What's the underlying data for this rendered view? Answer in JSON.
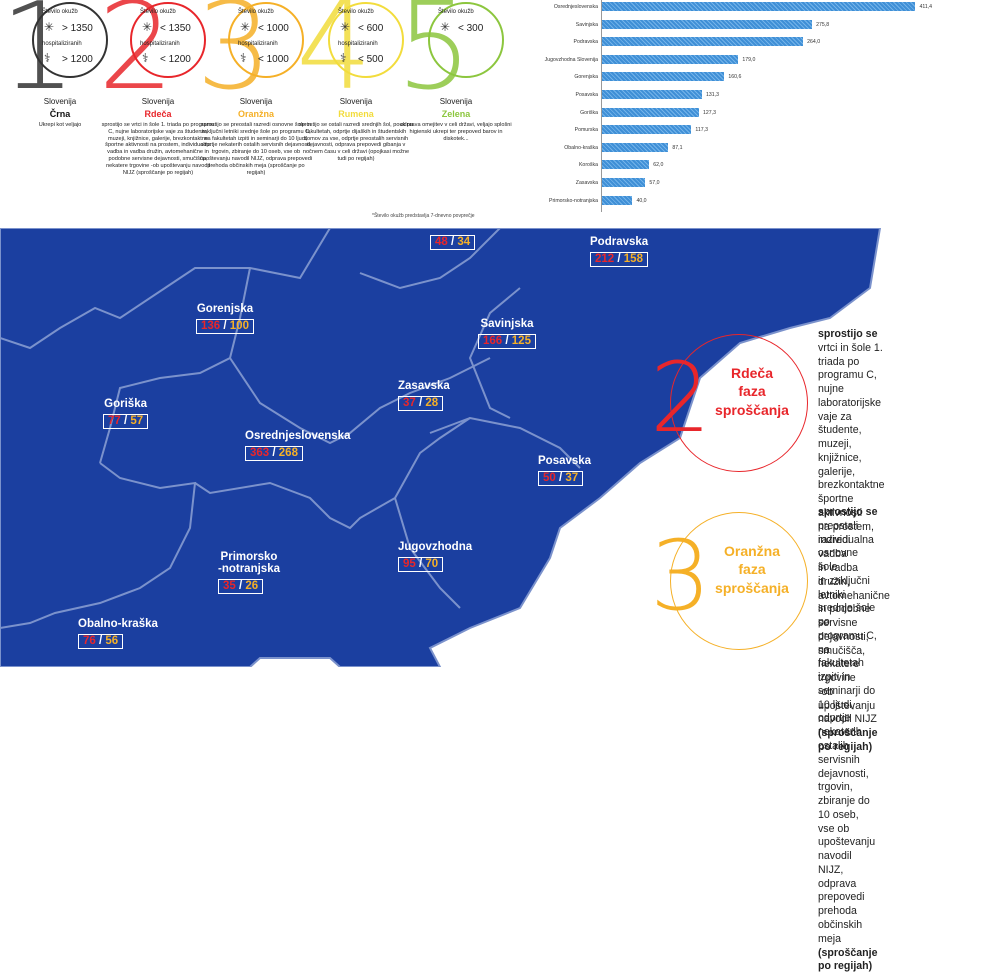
{
  "phases": [
    {
      "num": "1",
      "color": "#333333",
      "stat_top": "Število okužb",
      "val_top": "> 1350",
      "stat_mid": "hospitaliziranih",
      "val_mid": "> 1200",
      "region": "Slovenija",
      "name": "Črna",
      "desc": "Ukrepi kot veljajo"
    },
    {
      "num": "2",
      "color": "#e8262b",
      "stat_top": "Število okužb",
      "val_top": "< 1350",
      "stat_mid": "hospitaliziranih",
      "val_mid": "< 1200",
      "region": "Slovenija",
      "name": "Rdeča",
      "desc": "sprostijo se vrtci in šole 1. triada po programu C, nujne laboratorijske vaje za študente, muzeji, knjižnice, galerije, brezkontaktne športne aktivnosti na prostem, individualna vadba in vadba družin, avtomehanične in podobne servisne dejavnosti, smučišča, nekatere trgovine -ob upoštevanju navodil NIJZ (sproščanje po regijah)"
    },
    {
      "num": "3",
      "color": "#f5b027",
      "stat_top": "Število okužb",
      "val_top": "< 1000",
      "stat_mid": "hospitaliziranih",
      "val_mid": "< 1000",
      "region": "Slovenija",
      "name": "Oranžna",
      "desc": "sprostijo se preostali razredi osnovne šole in zaključni letniki srednje šole po programu C, na fakultetah izpiti in seminarji do 10 ljudi, odprtje nekaterih ostalih servisnih dejavnosti, trgovin, zbiranje do 10 oseb, vse ob upoštevanju navodil NIJZ, odprava prepovedi prehoda občinskih meja (sproščanje po regijah)"
    },
    {
      "num": "4",
      "color": "#f2dc3c",
      "stat_top": "Število okužb",
      "val_top": "< 600",
      "stat_mid": "hospitaliziranih",
      "val_mid": "< 500",
      "region": "Slovenija",
      "name": "Rumena",
      "desc": "sprostijo se ostali razredi srednjih šol, pouk na fakultetah, odprtje dijaških in študentskih domov za vse, odprtje preostalih servisnih dejavnosti, odprava prepovedi gibanja v nočnem času v celi državi (opojkasi možne tudi po regijah)"
    },
    {
      "num": "5",
      "color": "#8cc63e",
      "stat_top": "Število okužb",
      "val_top": "< 300",
      "stat_mid": "",
      "val_mid": "",
      "region": "Slovenija",
      "name": "Zelena",
      "desc": "odprava omejitev v celi državi, veljajo splošni higienski ukrepi ter prepoved barov in diskotek..."
    }
  ],
  "footnote": "*Število okužb predstavlja 7-dnevno povprečje",
  "chart_data": {
    "type": "bar",
    "orientation": "horizontal",
    "categories": [
      "Osrednjeslovenska",
      "Savinjska",
      "Podravska",
      "Jugovzhodna Slovenija",
      "Gorenjska",
      "Posavska",
      "Goriška",
      "Pomurska",
      "Obalno-kraška",
      "Koroška",
      "Zasavska",
      "Primorsko-notranjska"
    ],
    "values": [
      411.4,
      275.8,
      264.0,
      179.0,
      160.6,
      131.3,
      127.3,
      117.3,
      87.1,
      62.0,
      57.0,
      40.0
    ],
    "value_labels": [
      "411,4",
      "275,8",
      "264,0",
      "179,0",
      "160,6",
      "131,3",
      "127,3",
      "117,3",
      "87,1",
      "62,0",
      "57,0",
      "40,0"
    ],
    "color": "#3f8fd6"
  },
  "map": {
    "fill": "#1b3fa0",
    "regions": [
      {
        "name": "Pomurska",
        "a": "48",
        "b": "34"
      },
      {
        "name": "Podravska",
        "a": "212",
        "b": "158"
      },
      {
        "name": "Gorenjska",
        "a": "136",
        "b": "100"
      },
      {
        "name": "Savinjska",
        "a": "166",
        "b": "125"
      },
      {
        "name": "Goriška",
        "a": "77",
        "b": "57"
      },
      {
        "name": "Zasavska",
        "a": "37",
        "b": "28"
      },
      {
        "name": "Osrednjeslovenska",
        "a": "363",
        "b": "268"
      },
      {
        "name": "Posavska",
        "a": "50",
        "b": "37"
      },
      {
        "name": "Primorsko",
        "name2": "-notranjska",
        "a": "35",
        "b": "26"
      },
      {
        "name": "Jugovzhodna",
        "a": "95",
        "b": "70"
      },
      {
        "name": "Obalno-kraška",
        "a": "76",
        "b": "56"
      }
    ],
    "sep": "/"
  },
  "callouts": [
    {
      "num": "2",
      "color": "#e8262b",
      "title": "Rdeča faza sproščanja",
      "t1": "Rdeča",
      "t2": "faza",
      "t3": "sproščanja",
      "head": "sprostijo se",
      "body": [
        "vrtci in šole 1. triada po programu C,",
        "nujne laboratorijske vaje za študente,",
        "muzeji, knjižnice, galerije,",
        "brezkontaktne športne aktivnosti",
        "na prostem, individualna vadba",
        "in vadba družin, avtomehanične",
        "in podobne servisne dejavnosti,",
        "smučišča, nekatere trgovine",
        "-ob upoštevanju navodil NIJZ"
      ],
      "tail": "(sproščanje po regijah)"
    },
    {
      "num": "3",
      "color": "#f5b027",
      "t1": "Oranžna",
      "t2": "faza",
      "t3": "sproščanja",
      "head": "sprostijo se",
      "body": [
        "preostali razredi osnovne šole",
        "in zaključni letniki srednje šole",
        "po programu C, na fakultetah",
        "izpiti in seminarji do 10 ljudi,",
        "odprtje nekaterih",
        "ostalih servisnih dejavnosti,",
        "trgovin, zbiranje do 10 oseb,",
        "vse ob upoštevanju navodil NIJZ,",
        "odprava prepovedi",
        "prehoda občinskih meja"
      ],
      "tail": "(sproščanje po regijah)"
    }
  ]
}
